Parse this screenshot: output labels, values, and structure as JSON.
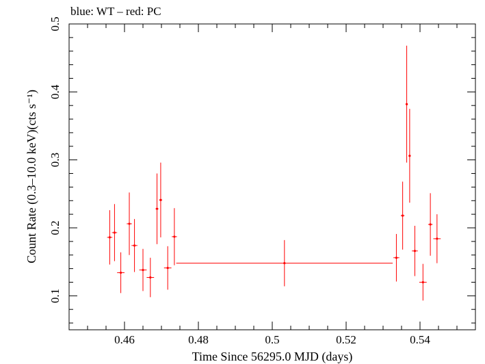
{
  "chart_data": {
    "type": "scatter",
    "title": "blue: WT – red: PC",
    "xlabel": "Time Since 56295.0 MJD (days)",
    "ylabel": "Count Rate (0.3–10.0 keV)(cts s⁻¹)",
    "xlim": [
      0.445,
      0.555
    ],
    "ylim": [
      0.05,
      0.5
    ],
    "xticks": [
      0.46,
      0.48,
      0.5,
      0.52,
      0.54
    ],
    "xtick_labels": [
      "0.46",
      "0.48",
      "0.5",
      "0.52",
      "0.54"
    ],
    "yticks": [
      0.1,
      0.2,
      0.3,
      0.4,
      0.5
    ],
    "ytick_labels": [
      "0.1",
      "0.2",
      "0.3",
      "0.4",
      "0.5"
    ],
    "colors": {
      "PC": "#ff0000",
      "WT": "#0000ff",
      "frame": "#000000"
    },
    "series": [
      {
        "name": "PC",
        "color": "#ff0000",
        "points": [
          {
            "x": 0.456,
            "xerr": 0.0007,
            "y": 0.186,
            "yerr": 0.04
          },
          {
            "x": 0.4573,
            "xerr": 0.0007,
            "y": 0.193,
            "yerr": 0.042
          },
          {
            "x": 0.459,
            "xerr": 0.001,
            "y": 0.134,
            "yerr": 0.03
          },
          {
            "x": 0.4613,
            "xerr": 0.0007,
            "y": 0.206,
            "yerr": 0.046
          },
          {
            "x": 0.4627,
            "xerr": 0.0008,
            "y": 0.174,
            "yerr": 0.039
          },
          {
            "x": 0.465,
            "xerr": 0.001,
            "y": 0.138,
            "yerr": 0.031
          },
          {
            "x": 0.467,
            "xerr": 0.001,
            "y": 0.127,
            "yerr": 0.029
          },
          {
            "x": 0.4688,
            "xerr": 0.0004,
            "y": 0.228,
            "yerr": 0.052
          },
          {
            "x": 0.4698,
            "xerr": 0.0004,
            "y": 0.241,
            "yerr": 0.055
          },
          {
            "x": 0.4717,
            "xerr": 0.001,
            "y": 0.141,
            "yerr": 0.032
          },
          {
            "x": 0.4735,
            "xerr": 0.0007,
            "y": 0.187,
            "yerr": 0.042
          },
          {
            "x": 0.5033,
            "xerr": 0.0293,
            "y": 0.148,
            "yerr": 0.034
          },
          {
            "x": 0.5336,
            "xerr": 0.0008,
            "y": 0.156,
            "yerr": 0.035
          },
          {
            "x": 0.5353,
            "xerr": 0.0005,
            "y": 0.218,
            "yerr": 0.05
          },
          {
            "x": 0.5364,
            "xerr": 0.0003,
            "y": 0.382,
            "yerr": 0.086
          },
          {
            "x": 0.5372,
            "xerr": 0.0003,
            "y": 0.306,
            "yerr": 0.069
          },
          {
            "x": 0.5386,
            "xerr": 0.0008,
            "y": 0.166,
            "yerr": 0.037
          },
          {
            "x": 0.5408,
            "xerr": 0.001,
            "y": 0.12,
            "yerr": 0.027
          },
          {
            "x": 0.5428,
            "xerr": 0.0006,
            "y": 0.205,
            "yerr": 0.046
          },
          {
            "x": 0.5446,
            "xerr": 0.001,
            "y": 0.184,
            "yerr": 0.036
          }
        ]
      }
    ]
  }
}
